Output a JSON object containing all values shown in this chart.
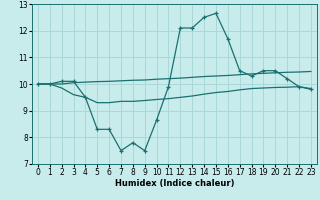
{
  "xlabel": "Humidex (Indice chaleur)",
  "ylabel": "",
  "xlim": [
    -0.5,
    23.5
  ],
  "ylim": [
    7,
    13
  ],
  "yticks": [
    7,
    8,
    9,
    10,
    11,
    12,
    13
  ],
  "xticks": [
    0,
    1,
    2,
    3,
    4,
    5,
    6,
    7,
    8,
    9,
    10,
    11,
    12,
    13,
    14,
    15,
    16,
    17,
    18,
    19,
    20,
    21,
    22,
    23
  ],
  "background_color": "#c8ecec",
  "grid_color": "#aad8d8",
  "line_color": "#1a7070",
  "line1_x": [
    0,
    1,
    2,
    3,
    4,
    5,
    6,
    7,
    8,
    9,
    10,
    11,
    12,
    13,
    14,
    15,
    16,
    17,
    18,
    19,
    20,
    21,
    22,
    23
  ],
  "line1_y": [
    10.0,
    10.0,
    10.1,
    10.1,
    9.5,
    8.3,
    8.3,
    7.5,
    7.8,
    7.5,
    8.65,
    9.9,
    12.1,
    12.1,
    12.5,
    12.65,
    11.7,
    10.5,
    10.3,
    10.5,
    10.5,
    10.2,
    9.9,
    9.8
  ],
  "line2_x": [
    0,
    1,
    2,
    3,
    4,
    5,
    6,
    7,
    8,
    9,
    10,
    11,
    12,
    13,
    14,
    15,
    16,
    17,
    18,
    19,
    20,
    21,
    22,
    23
  ],
  "line2_y": [
    10.0,
    10.0,
    10.0,
    10.05,
    10.07,
    10.09,
    10.1,
    10.12,
    10.14,
    10.15,
    10.18,
    10.2,
    10.22,
    10.25,
    10.28,
    10.3,
    10.32,
    10.35,
    10.38,
    10.4,
    10.42,
    10.44,
    10.45,
    10.47
  ],
  "line3_x": [
    0,
    1,
    2,
    3,
    4,
    5,
    6,
    7,
    8,
    9,
    10,
    11,
    12,
    13,
    14,
    15,
    16,
    17,
    18,
    19,
    20,
    21,
    22,
    23
  ],
  "line3_y": [
    10.0,
    10.0,
    9.85,
    9.6,
    9.5,
    9.3,
    9.3,
    9.35,
    9.35,
    9.38,
    9.42,
    9.45,
    9.5,
    9.55,
    9.62,
    9.68,
    9.72,
    9.78,
    9.83,
    9.85,
    9.87,
    9.88,
    9.9,
    9.83
  ]
}
